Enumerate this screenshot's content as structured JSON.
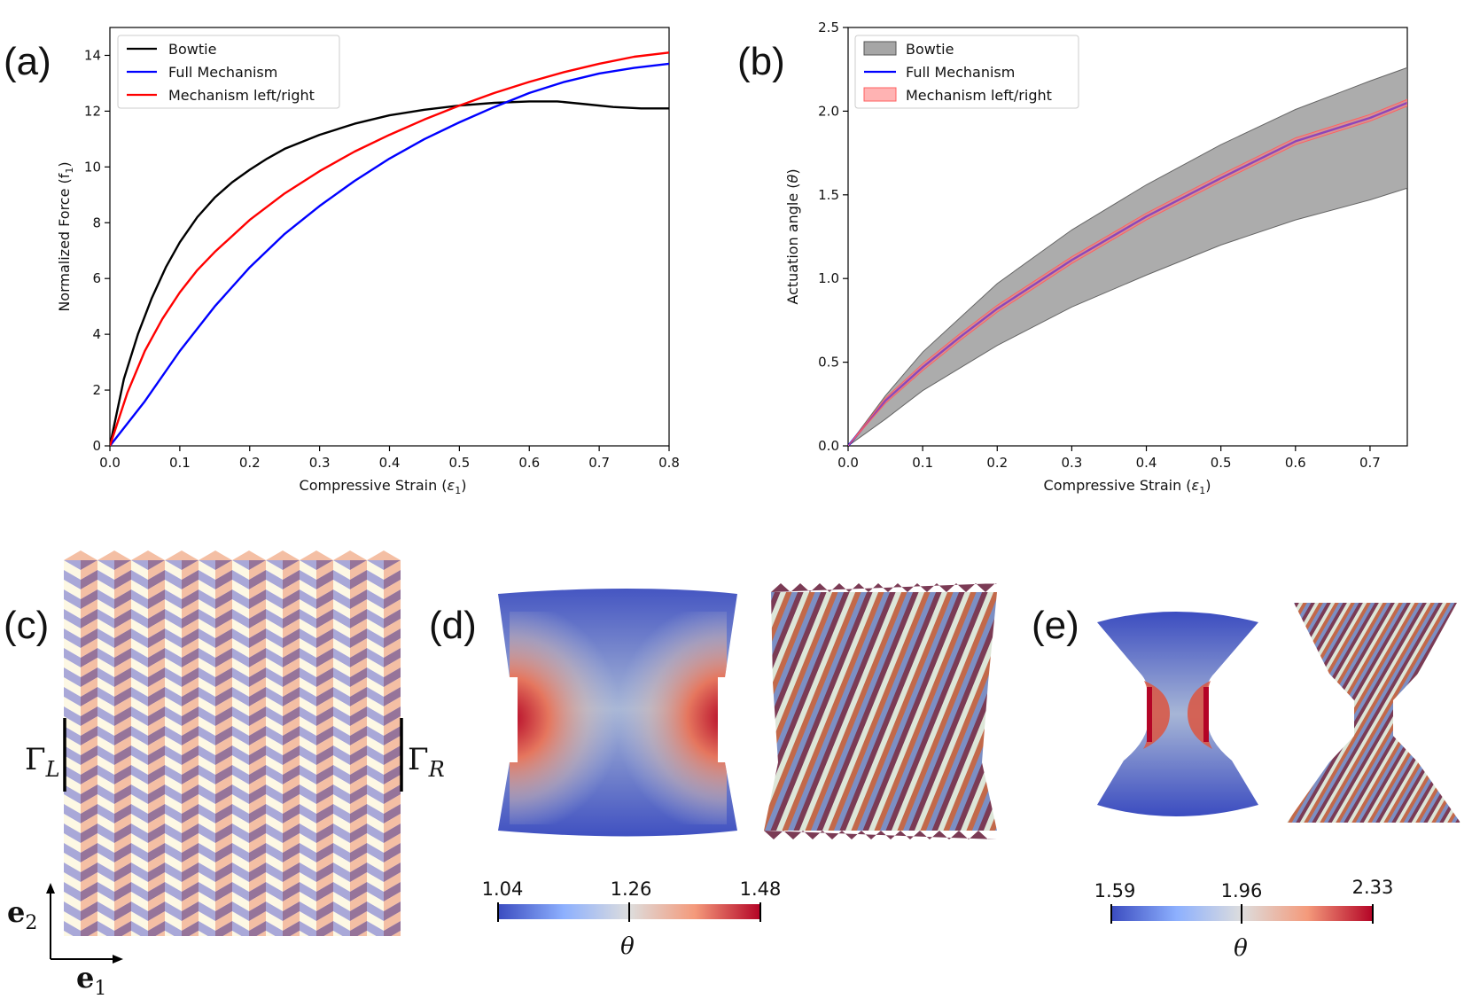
{
  "panel_labels": {
    "a": "(a)",
    "b": "(b)",
    "c": "(c)",
    "d": "(d)",
    "e": "(e)"
  },
  "chart_data": [
    {
      "type": "line",
      "panel": "(a)",
      "xlabel_main": "Compressive Strain (",
      "xlabel_sym": "ε",
      "xlabel_sub": "1",
      "xlabel_end": ")",
      "ylabel_main": "Normalized Force (f",
      "ylabel_sub": "1",
      "ylabel_end": ")",
      "xlim": [
        0,
        0.8
      ],
      "ylim": [
        0,
        15
      ],
      "xticks": [
        0.0,
        0.1,
        0.2,
        0.3,
        0.4,
        0.5,
        0.6,
        0.7,
        0.8
      ],
      "xtick_labels": [
        "0.0",
        "0.1",
        "0.2",
        "0.3",
        "0.4",
        "0.5",
        "0.6",
        "0.7",
        "0.8"
      ],
      "yticks": [
        0,
        2,
        4,
        6,
        8,
        10,
        12,
        14
      ],
      "ytick_labels": [
        "0",
        "2",
        "4",
        "6",
        "8",
        "10",
        "12",
        "14"
      ],
      "legend_position": "top-left",
      "series": [
        {
          "name": "Bowtie",
          "color": "#000000",
          "x": [
            0,
            0.02,
            0.04,
            0.06,
            0.08,
            0.1,
            0.125,
            0.15,
            0.175,
            0.2,
            0.225,
            0.25,
            0.3,
            0.35,
            0.4,
            0.45,
            0.5,
            0.55,
            0.6,
            0.64,
            0.68,
            0.72,
            0.76,
            0.8
          ],
          "y": [
            0,
            2.4,
            4.0,
            5.3,
            6.4,
            7.3,
            8.2,
            8.9,
            9.45,
            9.9,
            10.3,
            10.65,
            11.15,
            11.55,
            11.85,
            12.05,
            12.2,
            12.3,
            12.35,
            12.35,
            12.25,
            12.15,
            12.1,
            12.1
          ]
        },
        {
          "name": "Full Mechanism",
          "color": "#0000ff",
          "x": [
            0,
            0.05,
            0.1,
            0.15,
            0.2,
            0.25,
            0.3,
            0.35,
            0.4,
            0.45,
            0.5,
            0.55,
            0.6,
            0.65,
            0.7,
            0.75,
            0.8
          ],
          "y": [
            0,
            1.6,
            3.4,
            5.0,
            6.4,
            7.6,
            8.6,
            9.5,
            10.3,
            11.0,
            11.6,
            12.15,
            12.65,
            13.05,
            13.35,
            13.55,
            13.7
          ]
        },
        {
          "name": "Mechanism left/right",
          "color": "#ff0000",
          "x": [
            0,
            0.025,
            0.05,
            0.075,
            0.1,
            0.125,
            0.15,
            0.2,
            0.25,
            0.3,
            0.35,
            0.4,
            0.45,
            0.5,
            0.55,
            0.6,
            0.65,
            0.7,
            0.75,
            0.8
          ],
          "y": [
            0,
            1.9,
            3.4,
            4.55,
            5.5,
            6.3,
            6.95,
            8.1,
            9.05,
            9.85,
            10.55,
            11.15,
            11.7,
            12.2,
            12.65,
            13.05,
            13.4,
            13.7,
            13.95,
            14.1
          ]
        }
      ]
    },
    {
      "type": "line",
      "panel": "(b)",
      "xlabel_main": "Compressive Strain (",
      "xlabel_sym": "ε",
      "xlabel_sub": "1",
      "xlabel_end": ")",
      "ylabel_main": "Actuation angle (",
      "ylabel_sym": "θ",
      "ylabel_end": ")",
      "xlim": [
        0,
        0.75
      ],
      "ylim": [
        0,
        2.5
      ],
      "xticks": [
        0.0,
        0.1,
        0.2,
        0.3,
        0.4,
        0.5,
        0.6,
        0.7
      ],
      "xtick_labels": [
        "0.0",
        "0.1",
        "0.2",
        "0.3",
        "0.4",
        "0.5",
        "0.6",
        "0.7"
      ],
      "yticks": [
        0.0,
        0.5,
        1.0,
        1.5,
        2.0,
        2.5
      ],
      "ytick_labels": [
        "0.0",
        "0.5",
        "1.0",
        "1.5",
        "2.0",
        "2.5"
      ],
      "legend_position": "top-left",
      "series": [
        {
          "name": "Bowtie",
          "style": "band",
          "color": "#808080",
          "x": [
            0,
            0.05,
            0.1,
            0.2,
            0.3,
            0.4,
            0.5,
            0.6,
            0.7,
            0.75
          ],
          "upper": [
            0,
            0.3,
            0.56,
            0.97,
            1.29,
            1.56,
            1.8,
            2.01,
            2.18,
            2.26
          ],
          "lower": [
            0,
            0.16,
            0.33,
            0.6,
            0.83,
            1.02,
            1.2,
            1.35,
            1.47,
            1.54
          ]
        },
        {
          "name": "Full Mechanism",
          "style": "line",
          "color": "#0000ff",
          "x": [
            0,
            0.05,
            0.1,
            0.15,
            0.2,
            0.3,
            0.4,
            0.5,
            0.6,
            0.7,
            0.75
          ],
          "y": [
            0,
            0.27,
            0.47,
            0.65,
            0.82,
            1.11,
            1.37,
            1.6,
            1.82,
            1.96,
            2.05
          ]
        },
        {
          "name": "Mechanism left/right",
          "style": "band",
          "color": "#ff8080",
          "x": [
            0,
            0.05,
            0.1,
            0.15,
            0.2,
            0.3,
            0.4,
            0.5,
            0.6,
            0.7,
            0.75
          ],
          "upper": [
            0,
            0.285,
            0.49,
            0.67,
            0.84,
            1.13,
            1.39,
            1.62,
            1.84,
            1.98,
            2.07
          ],
          "lower": [
            0,
            0.255,
            0.45,
            0.63,
            0.8,
            1.09,
            1.35,
            1.58,
            1.8,
            1.94,
            2.03
          ]
        }
      ]
    }
  ],
  "panel_c": {
    "gamma_left": "Γ",
    "gamma_left_sub": "L",
    "gamma_right": "Γ",
    "gamma_right_sub": "R",
    "axis1": "e",
    "axis1_sub": "1",
    "axis2": "e",
    "axis2_sub": "2",
    "pattern_colors": [
      "#fdf8e4",
      "#f4bfa4",
      "#a9a8d8",
      "#96749a"
    ]
  },
  "colorbar_d": {
    "ticks": [
      "1.04",
      "1.26",
      "1.48"
    ],
    "label": "θ"
  },
  "colorbar_e": {
    "ticks": [
      "1.59",
      "1.96",
      "2.33"
    ],
    "label": "θ"
  },
  "colormap": {
    "low": "#3b4cc0",
    "mid": "#dddddd",
    "high": "#b40426"
  }
}
